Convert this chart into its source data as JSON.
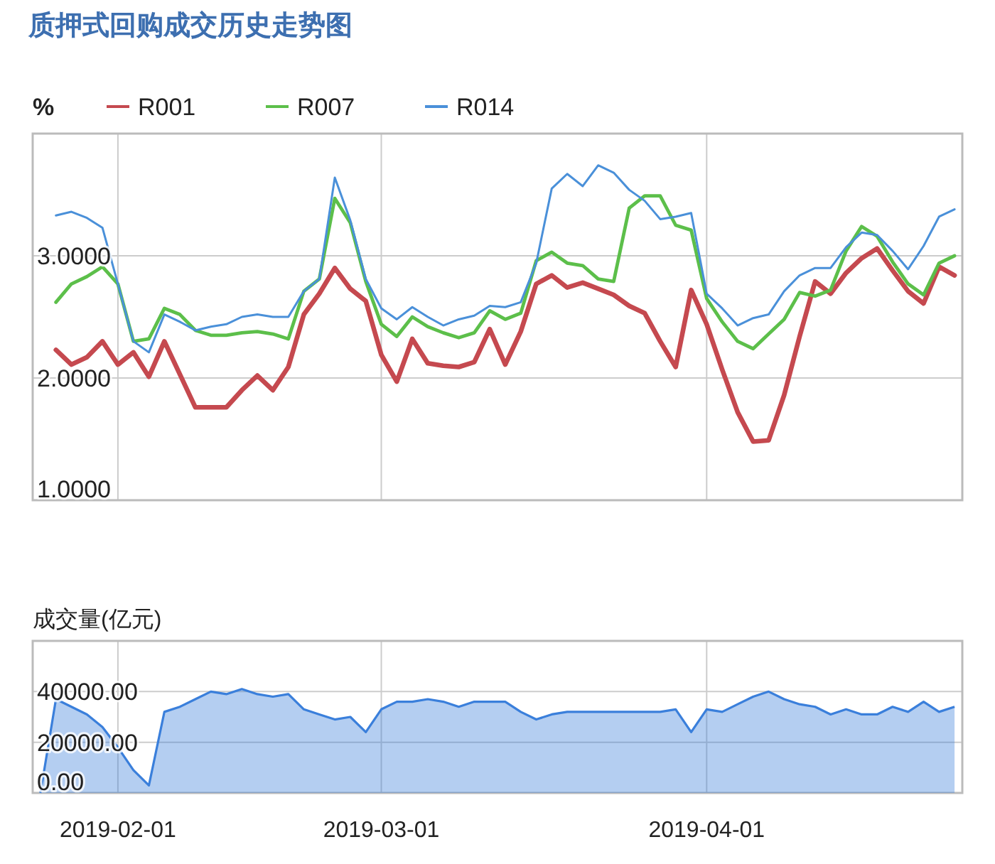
{
  "chart_data": [
    {
      "type": "line",
      "title": "质押式回购成交历史走势图",
      "ylabel": "%",
      "categories": [
        null,
        null,
        null,
        null,
        null,
        "2019-02-01",
        null,
        null,
        null,
        null,
        null,
        null,
        null,
        null,
        null,
        null,
        null,
        null,
        null,
        null,
        null,
        null,
        "2019-03-01",
        null,
        null,
        null,
        null,
        null,
        null,
        null,
        null,
        null,
        null,
        null,
        null,
        null,
        null,
        null,
        null,
        null,
        null,
        null,
        null,
        "2019-04-01",
        null,
        null,
        null,
        null,
        null,
        null,
        null,
        null,
        null,
        null,
        null,
        null,
        null,
        null,
        null,
        null
      ],
      "ylim": [
        1,
        4
      ],
      "yticks": [
        {
          "value": 1,
          "label": "1.0000"
        },
        {
          "value": 2,
          "label": "2.0000"
        },
        {
          "value": 3,
          "label": "3.0000"
        }
      ],
      "grid": true,
      "legend": "top left",
      "tick_labels": "y",
      "marker": "none",
      "line_style": "solid",
      "series": [
        {
          "name": "R001",
          "color": "#c5494f",
          "values": [
            null,
            2.23,
            2.11,
            2.17,
            2.3,
            2.11,
            2.21,
            2.01,
            2.3,
            2.03,
            1.76,
            1.76,
            1.76,
            1.9,
            2.02,
            1.9,
            2.09,
            2.52,
            2.69,
            2.9,
            2.73,
            2.63,
            2.19,
            1.97,
            2.32,
            2.12,
            2.1,
            2.09,
            2.13,
            2.4,
            2.11,
            2.38,
            2.77,
            2.84,
            2.74,
            2.78,
            2.73,
            2.68,
            2.59,
            2.53,
            2.3,
            2.09,
            2.72,
            2.44,
            2.07,
            1.72,
            1.48,
            1.49,
            1.86,
            2.34,
            2.79,
            2.69,
            2.86,
            2.98,
            3.06,
            2.88,
            2.71,
            2.61,
            2.91,
            2.84
          ]
        },
        {
          "name": "R007",
          "color": "#5cbf4a",
          "values": [
            null,
            2.62,
            2.77,
            2.83,
            2.91,
            2.77,
            2.3,
            2.32,
            2.57,
            2.52,
            2.39,
            2.35,
            2.35,
            2.37,
            2.38,
            2.36,
            2.32,
            2.71,
            2.81,
            3.47,
            3.27,
            2.79,
            2.44,
            2.34,
            2.5,
            2.42,
            2.37,
            2.33,
            2.37,
            2.55,
            2.48,
            2.53,
            2.96,
            3.03,
            2.94,
            2.92,
            2.81,
            2.79,
            3.39,
            3.49,
            3.49,
            3.25,
            3.21,
            2.65,
            2.46,
            2.3,
            2.24,
            2.36,
            2.48,
            2.7,
            2.67,
            2.72,
            3.04,
            3.24,
            3.16,
            2.95,
            2.77,
            2.68,
            2.94,
            3.0
          ]
        },
        {
          "name": "R014",
          "color": "#4a90d9",
          "values": [
            null,
            3.33,
            3.36,
            3.31,
            3.23,
            2.77,
            2.3,
            2.21,
            2.52,
            2.46,
            2.39,
            2.42,
            2.44,
            2.5,
            2.52,
            2.5,
            2.5,
            2.71,
            2.81,
            3.64,
            3.29,
            2.81,
            2.57,
            2.48,
            2.58,
            2.5,
            2.43,
            2.48,
            2.51,
            2.59,
            2.58,
            2.62,
            2.94,
            3.55,
            3.67,
            3.57,
            3.74,
            3.68,
            3.54,
            3.45,
            3.3,
            3.32,
            3.35,
            2.69,
            2.57,
            2.43,
            2.49,
            2.52,
            2.71,
            2.84,
            2.9,
            2.9,
            3.07,
            3.19,
            3.17,
            3.04,
            2.89,
            3.08,
            3.32,
            3.38
          ]
        }
      ]
    },
    {
      "type": "area",
      "ylabel": "成交量(亿元)",
      "categories": [
        null,
        null,
        null,
        null,
        null,
        "2019-02-01",
        null,
        null,
        null,
        null,
        null,
        null,
        null,
        null,
        null,
        null,
        null,
        null,
        null,
        null,
        null,
        null,
        "2019-03-01",
        null,
        null,
        null,
        null,
        null,
        null,
        null,
        null,
        null,
        null,
        null,
        null,
        null,
        null,
        null,
        null,
        null,
        null,
        null,
        null,
        "2019-04-01",
        null,
        null,
        null,
        null,
        null,
        null,
        null,
        null,
        null,
        null,
        null,
        null,
        null,
        null,
        null,
        null
      ],
      "ylim": [
        0,
        60000
      ],
      "yticks": [
        {
          "value": 0,
          "label": "0.00"
        },
        {
          "value": 20000,
          "label": "20000.00"
        },
        {
          "value": 40000,
          "label": "40000.00"
        }
      ],
      "grid": true,
      "color": "#3a7fdb",
      "values": [
        0,
        37000,
        34000,
        31000,
        26000,
        18000,
        9000,
        3000,
        32000,
        34000,
        37000,
        40000,
        39000,
        41000,
        39000,
        38000,
        39000,
        33000,
        31000,
        29000,
        30000,
        24000,
        33000,
        36000,
        36000,
        37000,
        36000,
        34000,
        36000,
        36000,
        36000,
        32000,
        29000,
        31000,
        32000,
        32000,
        32000,
        32000,
        32000,
        32000,
        32000,
        33000,
        24000,
        33000,
        32000,
        35000,
        38000,
        40000,
        37000,
        35000,
        34000,
        31000,
        33000,
        31000,
        31000,
        34000,
        32000,
        36000,
        32000,
        34000
      ]
    }
  ]
}
